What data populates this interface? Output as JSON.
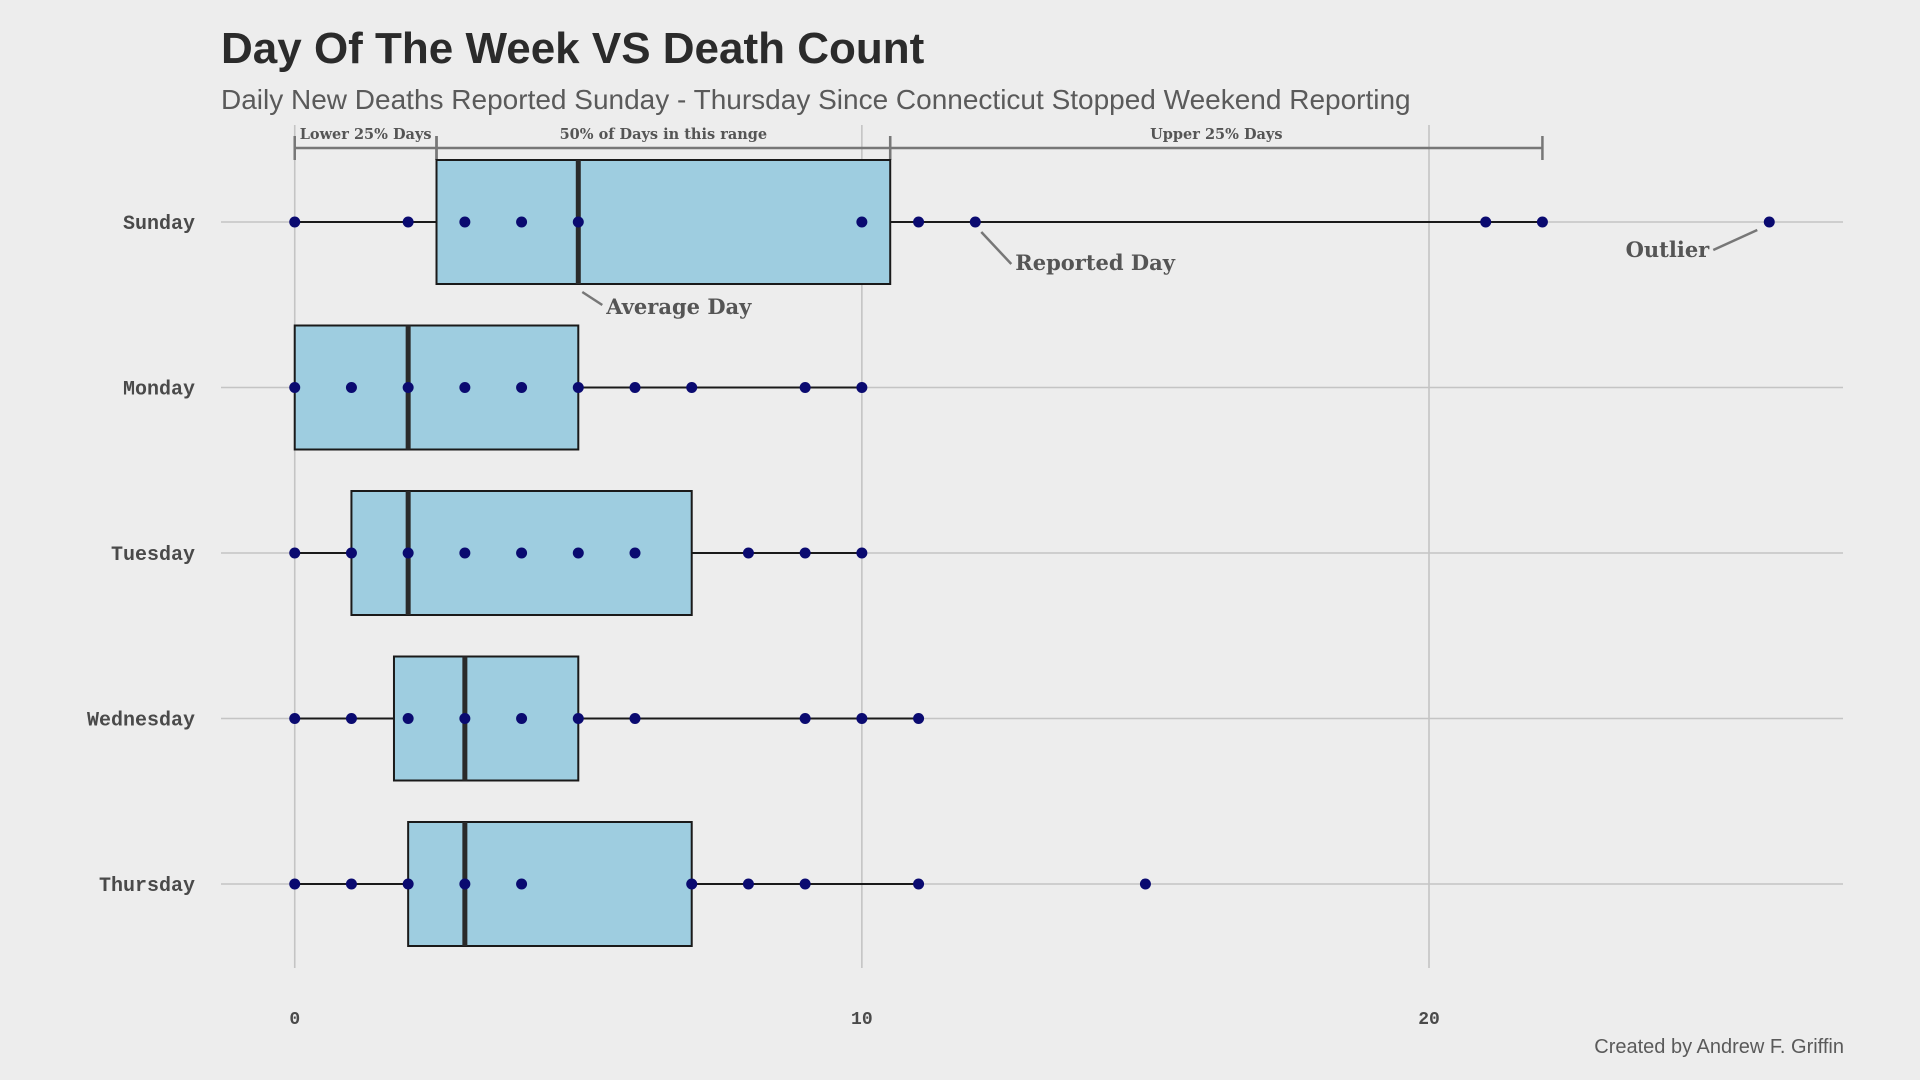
{
  "title": "Day Of The Week VS Death Count",
  "subtitle": "Daily New Deaths Reported Sunday - Thursday Since Connecticut Stopped Weekend Reporting",
  "caption": "Created by Andrew F. Griffin",
  "chart_data": {
    "type": "boxplot",
    "orientation": "horizontal",
    "xlim": [
      -1.3,
      27.3
    ],
    "x_ticks": [
      0,
      10,
      20
    ],
    "x_tick_labels": [
      "0",
      "10",
      "20"
    ],
    "grid": true,
    "legend": "none",
    "categories": [
      "Sunday",
      "Monday",
      "Tuesday",
      "Wednesday",
      "Thursday"
    ],
    "series": [
      {
        "day": "Sunday",
        "whisker_low": 0,
        "q1": 2.5,
        "median": 5,
        "q3": 10.5,
        "whisker_high": 22,
        "points": [
          0,
          2,
          3,
          4,
          5,
          10,
          11,
          12,
          21,
          22,
          26
        ]
      },
      {
        "day": "Monday",
        "whisker_low": 0,
        "q1": 0,
        "median": 2,
        "q3": 5,
        "whisker_high": 10,
        "points": [
          0,
          1,
          2,
          3,
          4,
          5,
          6,
          7,
          9,
          10
        ]
      },
      {
        "day": "Tuesday",
        "whisker_low": 0,
        "q1": 1,
        "median": 2,
        "q3": 7,
        "whisker_high": 10,
        "points": [
          0,
          1,
          2,
          3,
          4,
          5,
          6,
          8,
          9,
          10
        ]
      },
      {
        "day": "Wednesday",
        "whisker_low": 0,
        "q1": 1.75,
        "median": 3,
        "q3": 5,
        "whisker_high": 11,
        "points": [
          0,
          1,
          2,
          3,
          4,
          5,
          6,
          9,
          10,
          11
        ]
      },
      {
        "day": "Thursday",
        "whisker_low": 0,
        "q1": 2,
        "median": 3,
        "q3": 7,
        "whisker_high": 11,
        "points": [
          0,
          1,
          2,
          3,
          4,
          7,
          8,
          9,
          11,
          15
        ]
      }
    ],
    "brackets": [
      {
        "label": "Lower 25% Days",
        "from": 0,
        "to": 2.5
      },
      {
        "label": "50% of Days in this range",
        "from": 2.5,
        "to": 10.5
      },
      {
        "label": "Upper 25% Days",
        "from": 10.5,
        "to": 22
      }
    ],
    "annotations": [
      {
        "label": "Average Day",
        "day": "Sunday",
        "x": 5
      },
      {
        "label": "Reported Day",
        "day": "Sunday",
        "x": 12
      },
      {
        "label": "Outlier",
        "day": "Sunday",
        "x": 26
      }
    ],
    "colors": {
      "background": "#ededed",
      "box_fill": "#9ecde0",
      "point": "#0a0a70",
      "grid": "#c4c4c4",
      "annotation": "#777777"
    }
  }
}
